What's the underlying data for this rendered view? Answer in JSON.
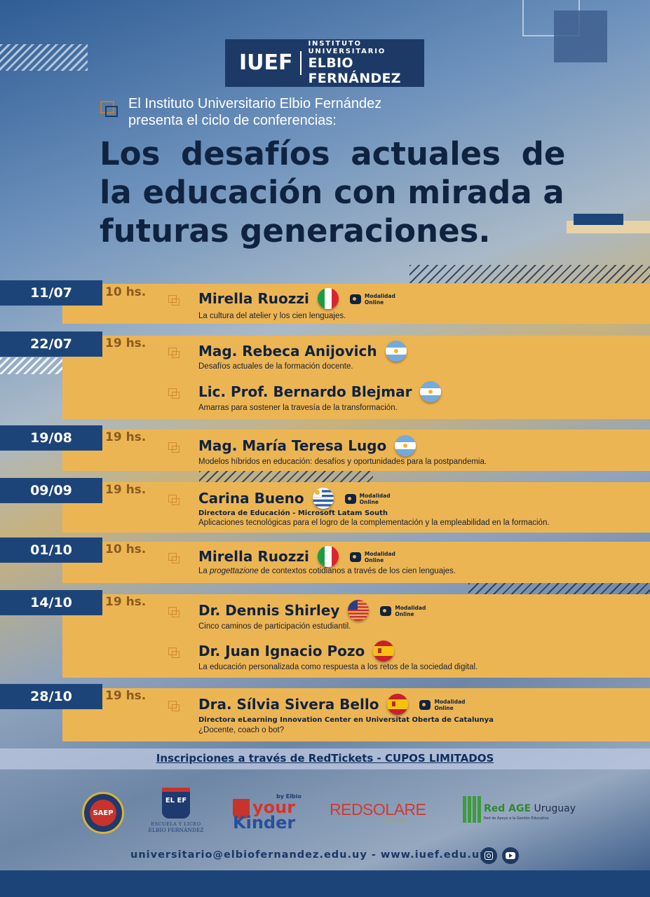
{
  "header": {
    "logo_short": "IUEF",
    "logo_line1": "INSTITUTO UNIVERSITARIO",
    "logo_line2": "ELBIO FERNÁNDEZ"
  },
  "intro": {
    "line1": "El Instituto Universitario Elbio Fernández",
    "line2": "presenta el ciclo de conferencias:"
  },
  "title": {
    "line1": "Los desafíos actuales de",
    "line2": "la educación con mirada a",
    "line3": "futuras generaciones."
  },
  "modality": {
    "line1": "Modalidad",
    "line2": "Online"
  },
  "events": [
    {
      "date": "11/07",
      "hour": "10 hs.",
      "speakers": [
        {
          "name": "Mirella Ruozzi",
          "flag": "italy",
          "online": true,
          "role": "",
          "topic": "La cultura del atelier y los cien lenguajes."
        }
      ]
    },
    {
      "date": "22/07",
      "hour": "19 hs.",
      "speakers": [
        {
          "name": "Mag. Rebeca Anijovich",
          "flag": "argentina",
          "online": false,
          "role": "",
          "topic": "Desafíos actuales de la formación docente."
        },
        {
          "name": "Lic. Prof. Bernardo Blejmar",
          "flag": "argentina",
          "online": false,
          "role": "",
          "topic": "Amarras para sostener la travesía de la transformación."
        }
      ]
    },
    {
      "date": "19/08",
      "hour": "19 hs.",
      "speakers": [
        {
          "name": "Mag. María Teresa Lugo",
          "flag": "argentina",
          "online": false,
          "role": "",
          "topic": "Modelos híbridos en educación: desafíos y oportunidades para la postpandemia."
        }
      ]
    },
    {
      "date": "09/09",
      "hour": "19 hs.",
      "speakers": [
        {
          "name": "Carina Bueno",
          "flag": "uruguay",
          "online": true,
          "role": "Directora de Educación - Microsoft Latam South",
          "topic": "Aplicaciones tecnológicas para el logro de la complementación y la empleabilidad en la formación."
        }
      ]
    },
    {
      "date": "01/10",
      "hour": "10 hs.",
      "speakers": [
        {
          "name": "Mirella Ruozzi",
          "flag": "italy",
          "online": true,
          "role": "",
          "topic_pre": "La ",
          "topic_em": "progettazione",
          "topic_post": " de contextos cotidianos a través de los cien lenguajes."
        }
      ]
    },
    {
      "date": "14/10",
      "hour": "19 hs.",
      "speakers": [
        {
          "name": "Dr. Dennis Shirley",
          "flag": "usa",
          "online": true,
          "role": "",
          "topic": "Cinco caminos de participación estudiantil."
        },
        {
          "name": "Dr. Juan Ignacio Pozo",
          "flag": "spain",
          "online": false,
          "role": "",
          "topic": "La educación personalizada como respuesta a los retos de la sociedad digital."
        }
      ]
    },
    {
      "date": "28/10",
      "hour": "19 hs.",
      "speakers": [
        {
          "name": "Dra. Sílvia Sivera Bello",
          "flag": "spain",
          "online": true,
          "role": "Directora eLearning Innovation Center en Universitat Oberta de Catalunya",
          "topic": "¿Docente, coach o bot?"
        }
      ]
    }
  ],
  "registration": "Inscripciones a través de RedTickets - CUPOS LIMITADOS",
  "partners": {
    "saep": "SAEP",
    "escuela_line1": "ESCUELA Y LICEO",
    "escuela_line2": "ELBIO FERNÁNDEZ",
    "escuela_mark": "EL EF",
    "yourkinder_by": "by Elbio",
    "yourkinder_1": "your",
    "yourkinder_2": "Kinder",
    "redsolare": "REDSOLARE",
    "redsolare_sub": "URUGUAY",
    "redage_1": "Red AGE",
    "redage_2": "Uruguay",
    "redage_sub": "Red de Apoyo a la Gestión Educativa"
  },
  "contact": "universitario@elbiofernandez.edu.uy - www.iuef.edu.uy",
  "colors": {
    "navy": "#1c4478",
    "band": "#ecb554",
    "title": "#0f2340",
    "accent": "#d08a2e"
  }
}
